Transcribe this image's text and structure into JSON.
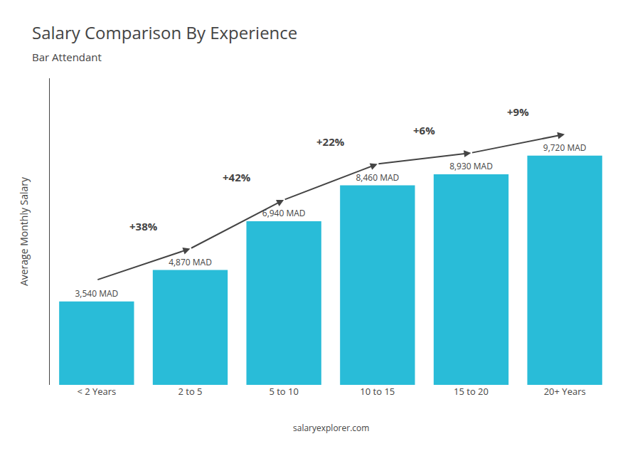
{
  "chart_data": {
    "type": "bar",
    "title": "Salary Comparison By Experience",
    "subtitle": "Bar Attendant",
    "categories": [
      "< 2 Years",
      "2 to 5",
      "5 to 10",
      "10 to 15",
      "15 to 20",
      "20+ Years"
    ],
    "values": [
      3540,
      4870,
      6940,
      8460,
      8930,
      9720
    ],
    "value_labels": [
      "3,540 MAD",
      "4,870 MAD",
      "6,940 MAD",
      "8,460 MAD",
      "8,930 MAD",
      "9,720 MAD"
    ],
    "data_labels": true,
    "annotations": [
      "+38%",
      "+42%",
      "+22%",
      "+6%",
      "+9%"
    ],
    "ylabel": "Average Monthly Salary",
    "footer": "salaryexplorer.com",
    "color": "#29bcd8",
    "ylim": [
      0,
      13000
    ],
    "tick_labels": "x",
    "grid": false
  }
}
